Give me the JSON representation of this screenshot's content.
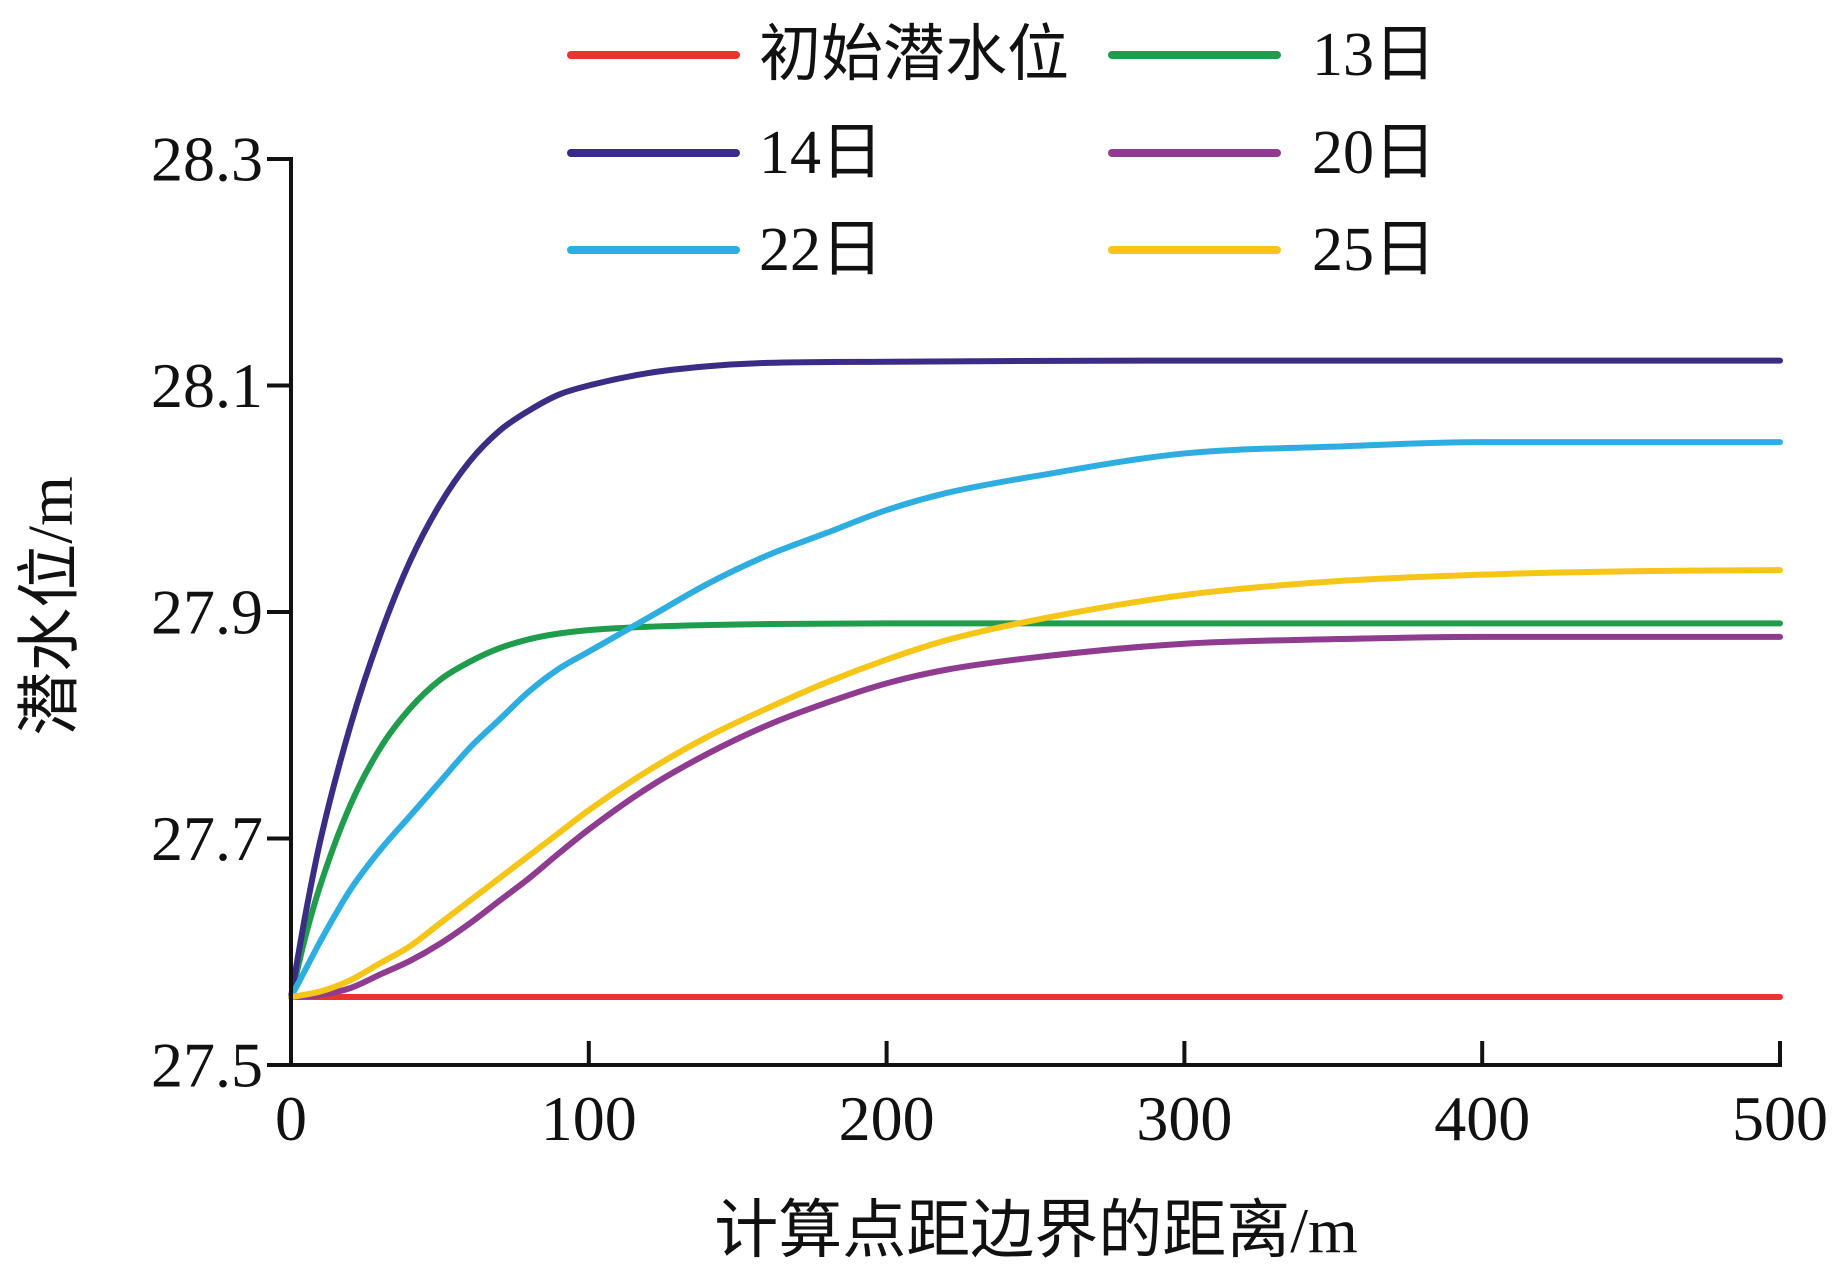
{
  "chart_data": {
    "type": "line",
    "title": "",
    "xlabel": "计算点距边界的距离/m",
    "ylabel": "潜水位/m",
    "xlim": [
      0,
      500
    ],
    "ylim": [
      27.5,
      28.3
    ],
    "xticks": [
      0,
      100,
      200,
      300,
      400,
      500
    ],
    "yticks": [
      27.5,
      27.7,
      27.9,
      28.1,
      28.3
    ],
    "grid": false,
    "legend": "top",
    "series": [
      {
        "name": "初始潜水位",
        "color": "#e8352e",
        "points": [
          [
            0,
            27.56
          ],
          [
            500,
            27.56
          ]
        ]
      },
      {
        "name": "13日",
        "color": "#1f9d4c",
        "points": [
          [
            0,
            27.56
          ],
          [
            5,
            27.615
          ],
          [
            10,
            27.66
          ],
          [
            20,
            27.73
          ],
          [
            30,
            27.78
          ],
          [
            40,
            27.815
          ],
          [
            50,
            27.84
          ],
          [
            60,
            27.856
          ],
          [
            70,
            27.868
          ],
          [
            80,
            27.876
          ],
          [
            90,
            27.881
          ],
          [
            100,
            27.884
          ],
          [
            120,
            27.887
          ],
          [
            150,
            27.889
          ],
          [
            200,
            27.89
          ],
          [
            300,
            27.89
          ],
          [
            400,
            27.89
          ],
          [
            500,
            27.89
          ]
        ]
      },
      {
        "name": "14日",
        "color": "#3b2d85",
        "points": [
          [
            0,
            27.56
          ],
          [
            5,
            27.635
          ],
          [
            10,
            27.7
          ],
          [
            20,
            27.8
          ],
          [
            30,
            27.88
          ],
          [
            40,
            27.945
          ],
          [
            50,
            27.995
          ],
          [
            60,
            28.033
          ],
          [
            70,
            28.06
          ],
          [
            80,
            28.078
          ],
          [
            90,
            28.092
          ],
          [
            100,
            28.1
          ],
          [
            120,
            28.111
          ],
          [
            140,
            28.117
          ],
          [
            160,
            28.12
          ],
          [
            200,
            28.121
          ],
          [
            300,
            28.122
          ],
          [
            400,
            28.122
          ],
          [
            500,
            28.122
          ]
        ]
      },
      {
        "name": "20日",
        "color": "#8e3b90",
        "points": [
          [
            0,
            27.56
          ],
          [
            10,
            27.562
          ],
          [
            20,
            27.568
          ],
          [
            30,
            27.58
          ],
          [
            40,
            27.592
          ],
          [
            50,
            27.607
          ],
          [
            60,
            27.625
          ],
          [
            70,
            27.645
          ],
          [
            80,
            27.665
          ],
          [
            90,
            27.687
          ],
          [
            100,
            27.708
          ],
          [
            120,
            27.745
          ],
          [
            140,
            27.775
          ],
          [
            160,
            27.8
          ],
          [
            180,
            27.82
          ],
          [
            200,
            27.837
          ],
          [
            220,
            27.849
          ],
          [
            250,
            27.86
          ],
          [
            300,
            27.872
          ],
          [
            350,
            27.876
          ],
          [
            400,
            27.878
          ],
          [
            500,
            27.878
          ]
        ]
      },
      {
        "name": "22日",
        "color": "#2eaee0",
        "points": [
          [
            0,
            27.56
          ],
          [
            5,
            27.585
          ],
          [
            10,
            27.61
          ],
          [
            20,
            27.655
          ],
          [
            30,
            27.69
          ],
          [
            40,
            27.72
          ],
          [
            50,
            27.75
          ],
          [
            60,
            27.78
          ],
          [
            70,
            27.805
          ],
          [
            80,
            27.83
          ],
          [
            90,
            27.85
          ],
          [
            100,
            27.865
          ],
          [
            120,
            27.895
          ],
          [
            140,
            27.925
          ],
          [
            160,
            27.95
          ],
          [
            180,
            27.97
          ],
          [
            200,
            27.99
          ],
          [
            220,
            28.005
          ],
          [
            250,
            28.02
          ],
          [
            300,
            28.04
          ],
          [
            350,
            28.046
          ],
          [
            400,
            28.05
          ],
          [
            500,
            28.05
          ]
        ]
      },
      {
        "name": "25日",
        "color": "#f5c518",
        "points": [
          [
            0,
            27.56
          ],
          [
            10,
            27.565
          ],
          [
            20,
            27.575
          ],
          [
            30,
            27.59
          ],
          [
            40,
            27.605
          ],
          [
            50,
            27.625
          ],
          [
            60,
            27.645
          ],
          [
            70,
            27.665
          ],
          [
            80,
            27.685
          ],
          [
            90,
            27.705
          ],
          [
            100,
            27.725
          ],
          [
            120,
            27.76
          ],
          [
            140,
            27.79
          ],
          [
            160,
            27.815
          ],
          [
            180,
            27.838
          ],
          [
            200,
            27.858
          ],
          [
            220,
            27.875
          ],
          [
            250,
            27.893
          ],
          [
            300,
            27.915
          ],
          [
            350,
            27.927
          ],
          [
            400,
            27.933
          ],
          [
            450,
            27.936
          ],
          [
            500,
            27.937
          ]
        ]
      }
    ]
  }
}
